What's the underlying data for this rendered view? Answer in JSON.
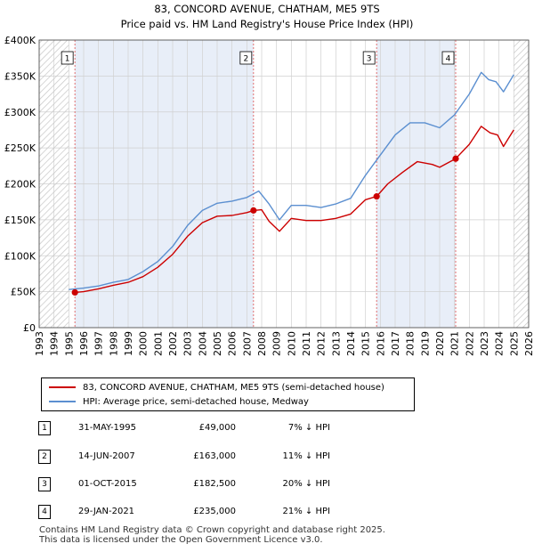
{
  "chart_data": {
    "type": "line",
    "title": "83, CONCORD AVENUE, CHATHAM, ME5 9TS",
    "subtitle": "Price paid vs. HM Land Registry's House Price Index (HPI)",
    "xlabel": "",
    "ylabel": "",
    "xlim": [
      1993,
      2026
    ],
    "ylim": [
      0,
      400000
    ],
    "x_ticks": [
      "1993",
      "1994",
      "1995",
      "1996",
      "1997",
      "1998",
      "1999",
      "2000",
      "2001",
      "2002",
      "2003",
      "2004",
      "2005",
      "2006",
      "2007",
      "2008",
      "2009",
      "2010",
      "2011",
      "2012",
      "2013",
      "2014",
      "2015",
      "2016",
      "2017",
      "2018",
      "2019",
      "2020",
      "2021",
      "2022",
      "2023",
      "2024",
      "2025",
      "2026"
    ],
    "y_ticks": [
      {
        "value": 0,
        "label": "£0"
      },
      {
        "value": 50000,
        "label": "£50K"
      },
      {
        "value": 100000,
        "label": "£100K"
      },
      {
        "value": 150000,
        "label": "£150K"
      },
      {
        "value": 200000,
        "label": "£200K"
      },
      {
        "value": 250000,
        "label": "£250K"
      },
      {
        "value": 300000,
        "label": "£300K"
      },
      {
        "value": 350000,
        "label": "£350K"
      },
      {
        "value": 400000,
        "label": "£400K"
      }
    ],
    "grid": true,
    "series": [
      {
        "name": "83, CONCORD AVENUE, CHATHAM, ME5 9TS (semi-detached house)",
        "color": "#cc0000",
        "x": [
          1995.41,
          1996.0,
          1997.0,
          1998.0,
          1999.0,
          2000.0,
          2001.0,
          2002.0,
          2003.0,
          2004.0,
          2005.0,
          2006.0,
          2007.0,
          2007.45,
          2008.0,
          2008.5,
          2009.2,
          2010.0,
          2011.0,
          2012.0,
          2013.0,
          2014.0,
          2015.0,
          2015.75,
          2016.5,
          2017.5,
          2018.5,
          2019.5,
          2020.0,
          2021.08,
          2022.0,
          2022.8,
          2023.4,
          2023.9,
          2024.3,
          2024.6,
          2025.0
        ],
        "values": [
          49000,
          50000,
          54000,
          59000,
          63000,
          71000,
          84000,
          102000,
          127000,
          146000,
          155000,
          156000,
          160000,
          163000,
          164000,
          148000,
          134000,
          152000,
          149000,
          149000,
          152000,
          158000,
          178000,
          182500,
          200000,
          216000,
          231000,
          227000,
          223000,
          235000,
          255000,
          280000,
          271000,
          268000,
          252000,
          262000,
          275000
        ]
      },
      {
        "name": "HPI: Average price, semi-detached house, Medway",
        "color": "#5b8fd0",
        "x": [
          1995.0,
          1996.0,
          1997.0,
          1998.0,
          1999.0,
          2000.0,
          2001.0,
          2002.0,
          2003.0,
          2004.0,
          2005.0,
          2006.0,
          2007.0,
          2007.8,
          2008.5,
          2009.2,
          2010.0,
          2011.0,
          2012.0,
          2013.0,
          2014.0,
          2015.0,
          2016.0,
          2017.0,
          2018.0,
          2019.0,
          2020.0,
          2021.0,
          2022.0,
          2022.8,
          2023.3,
          2023.8,
          2024.3,
          2025.0
        ],
        "values": [
          53000,
          55000,
          58000,
          63000,
          67000,
          78000,
          92000,
          113000,
          142000,
          163000,
          173000,
          176000,
          181000,
          190000,
          172000,
          150000,
          170000,
          170000,
          167000,
          172000,
          180000,
          212000,
          240000,
          268000,
          285000,
          285000,
          278000,
          296000,
          325000,
          355000,
          345000,
          342000,
          328000,
          352000
        ]
      }
    ],
    "annotations": [
      {
        "label": "1",
        "x": 1995.41,
        "value": 49000
      },
      {
        "label": "2",
        "x": 2007.45,
        "value": 163000
      },
      {
        "label": "3",
        "x": 2015.75,
        "value": 182500
      },
      {
        "label": "4",
        "x": 2021.08,
        "value": 235000
      }
    ],
    "hatched_ranges": [
      [
        1993,
        1995.0
      ],
      [
        2025.0,
        2026
      ]
    ]
  },
  "legend": {
    "property_label": "83, CONCORD AVENUE, CHATHAM, ME5 9TS (semi-detached house)",
    "hpi_label": "HPI: Average price, semi-detached house, Medway"
  },
  "transactions": [
    {
      "num": "1",
      "date": "31-MAY-1995",
      "price": "£49,000",
      "hpi": "7% ↓ HPI"
    },
    {
      "num": "2",
      "date": "14-JUN-2007",
      "price": "£163,000",
      "hpi": "11% ↓ HPI"
    },
    {
      "num": "3",
      "date": "01-OCT-2015",
      "price": "£182,500",
      "hpi": "20% ↓ HPI"
    },
    {
      "num": "4",
      "date": "29-JAN-2021",
      "price": "£235,000",
      "hpi": "21% ↓ HPI"
    }
  ],
  "footer": {
    "line1": "Contains HM Land Registry data © Crown copyright and database right 2025.",
    "line2": "This data is licensed under the Open Government Licence v3.0."
  }
}
